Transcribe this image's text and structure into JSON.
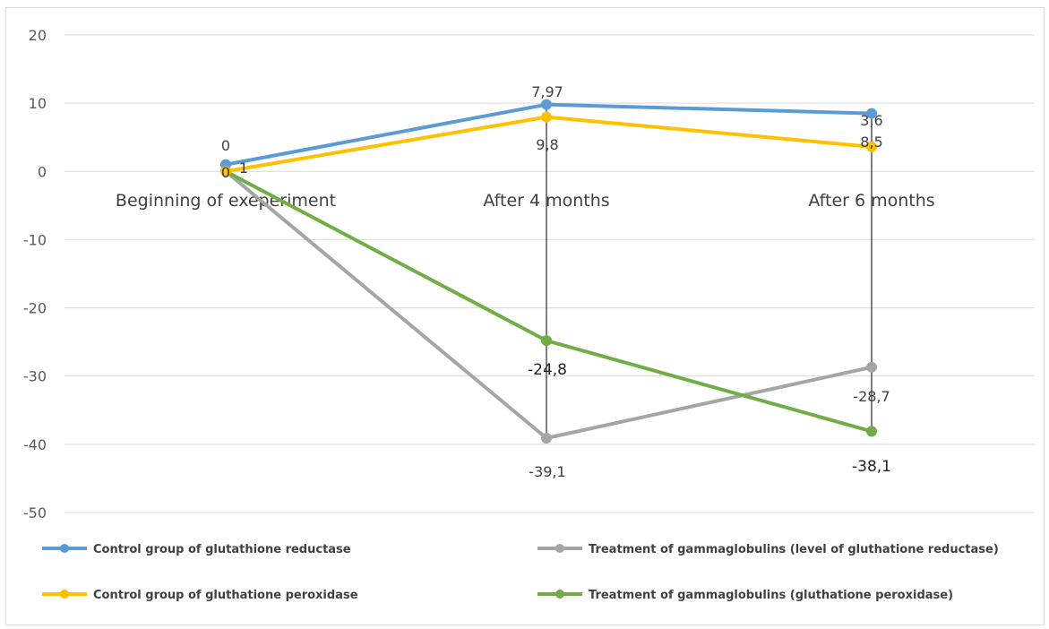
{
  "chart_data": {
    "type": "line",
    "categories": [
      "Beginning of exeperiment",
      "After 4 months",
      "After 6 months"
    ],
    "y_ticks": [
      "20",
      "10",
      "0",
      "-10",
      "-20",
      "-30",
      "-40",
      "-50"
    ],
    "ylim": [
      -50,
      20
    ],
    "grid": true,
    "legend_position": "bottom",
    "series": [
      {
        "name": "Control group of glutathione reductase",
        "color": "#5b9bd5",
        "values": [
          1,
          9.8,
          8.5
        ],
        "labels": [
          "1",
          "9,8",
          "8,5"
        ]
      },
      {
        "name": "Treatment of gammaglobulins (level of gluthatione reductase)",
        "color": "#a5a5a5",
        "values": [
          0,
          -39.1,
          -28.7
        ],
        "labels": [
          "0",
          "-39,1",
          "-28,7"
        ]
      },
      {
        "name": "Control group of gluthatione peroxidase",
        "color": "#ffc000",
        "values": [
          0,
          7.97,
          3.6
        ],
        "labels": [
          "0",
          "7,97",
          "3,6"
        ]
      },
      {
        "name": "Treatment of gammaglobulins (gluthatione peroxidase)",
        "color": "#70ad47",
        "values": [
          0,
          -24.8,
          -38.1
        ],
        "labels": [
          "0",
          "-24,8",
          "-38,1"
        ]
      }
    ]
  }
}
